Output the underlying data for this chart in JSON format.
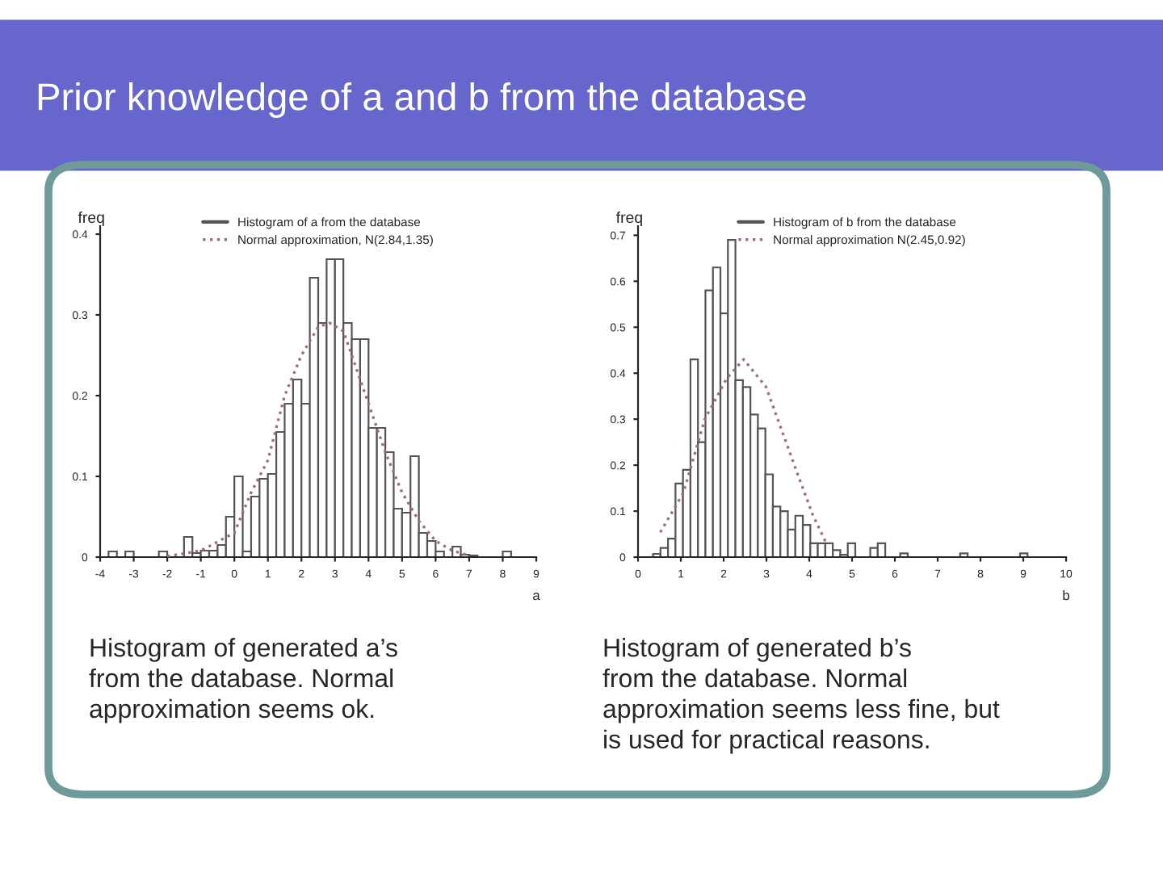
{
  "chart_data": [
    {
      "type": "histogram",
      "title": "Prior knowledge of a and b from the database",
      "ylabel": "freq",
      "xlabel": "a",
      "legend": "top",
      "bins": [
        -4,
        -3.75,
        -3.5,
        -3.25,
        -3,
        -2.75,
        -2.5,
        -2.25,
        -2,
        -1.75,
        -1.5,
        -1.25,
        -1,
        -0.75,
        -0.5,
        -0.25,
        0,
        0.25,
        0.5,
        0.75,
        1,
        1.25,
        1.5,
        1.75,
        2,
        2.25,
        2.5,
        2.75,
        3,
        3.25,
        3.5,
        3.75,
        4,
        4.25,
        4.5,
        4.75,
        5,
        5.25,
        5.5,
        5.75,
        6,
        6.25,
        6.5,
        6.75,
        7,
        7.25,
        7.5,
        7.75,
        8,
        8.25,
        8.5,
        8.75,
        9
      ],
      "series": [
        {
          "name": "Histogram of a from the database",
          "color": "#555555",
          "values": [
            0,
            0.007,
            0,
            0.007,
            0,
            0,
            0,
            0.007,
            null,
            0,
            0.025,
            0.005,
            0.008,
            0.008,
            0.015,
            0.05,
            0.1,
            0.007,
            0.075,
            0.097,
            0.103,
            0.155,
            0.19,
            0.22,
            0.19,
            0.346,
            0.29,
            0.369,
            0.369,
            0.29,
            0.27,
            0.27,
            0.16,
            0.16,
            0.13,
            0.06,
            0.055,
            0.125,
            0.03,
            0.02,
            0.007,
            0,
            0.013,
            0.003,
            0.002,
            0,
            0,
            0,
            0.007,
            0,
            0,
            0
          ]
        },
        {
          "name": "Normal approximation, N(2.84,1.35)",
          "type": "line",
          "color": "#a07070",
          "line_style": "dotted",
          "x": [
            -2,
            -1,
            0,
            0.5,
            1,
            1.5,
            2,
            2.5,
            2.84,
            3.25,
            3.5,
            4,
            4.5,
            5,
            5.5,
            6,
            6.5,
            7
          ],
          "values": [
            0.001,
            0.008,
            0.03,
            0.08,
            0.12,
            0.2,
            0.25,
            0.285,
            0.29,
            0.28,
            0.25,
            0.19,
            0.13,
            0.08,
            0.045,
            0.02,
            0.008,
            0.002
          ]
        }
      ],
      "xlim": [
        -4,
        9
      ],
      "xticks": [
        -4,
        -3,
        -2,
        -1,
        0,
        1,
        2,
        3,
        4,
        5,
        6,
        7,
        8,
        9
      ],
      "ylim": [
        0,
        0.41
      ],
      "yticks": [
        0,
        0.1,
        0.2,
        0.3,
        0.4
      ],
      "annotations": [
        "Histogram of generated a’s\nfrom the database. Normal\napproximation seems ok."
      ]
    },
    {
      "type": "histogram",
      "ylabel": "freq",
      "xlabel": "b",
      "legend": "top",
      "bins": [
        0.35,
        0.525,
        0.7,
        0.875,
        1.05,
        1.225,
        1.4,
        1.575,
        1.75,
        1.925,
        2.1,
        2.275,
        2.45,
        2.625,
        2.8,
        2.975,
        3.15,
        3.325,
        3.5,
        3.675,
        3.85,
        4.025,
        4.2,
        4.375,
        4.55,
        4.725,
        4.9,
        5.075,
        5.25,
        5.425,
        5.6,
        5.775,
        5.95,
        6.125,
        6.3,
        6.475,
        6.65,
        6.825,
        7,
        7.175,
        7.35,
        7.525,
        7.7,
        7.875,
        8.05,
        8.225,
        8.4,
        8.575,
        8.75,
        8.925,
        9.1,
        9.275,
        9.45
      ],
      "series": [
        {
          "name": "Histogram of b from the database",
          "color": "#555555",
          "values": [
            0.007,
            0.02,
            0.04,
            0.16,
            0.19,
            0.43,
            0.25,
            0.58,
            0.63,
            0.53,
            0.69,
            0.385,
            0.37,
            0.31,
            0.28,
            0.18,
            0.11,
            0.1,
            0.06,
            0.09,
            0.07,
            0.03,
            0.03,
            0.03,
            0.015,
            0.005,
            0.03,
            0,
            0,
            0.02,
            0.03,
            0,
            0,
            0.008,
            0,
            0,
            0,
            0,
            0,
            0,
            0,
            0.008,
            0,
            0,
            0,
            0,
            0,
            0,
            0,
            0.008,
            0,
            0
          ]
        },
        {
          "name": "Normal approximation N(2.45,0.92)",
          "type": "line",
          "color": "#a07070",
          "line_style": "dotted",
          "x": [
            0.52,
            1.06,
            1.56,
            2.08,
            2.47,
            2.99,
            3.38,
            3.77,
            4.09,
            4.4
          ],
          "values": [
            0.054,
            0.14,
            0.3,
            0.39,
            0.43,
            0.37,
            0.27,
            0.17,
            0.09,
            0.03
          ]
        }
      ],
      "xlim": [
        0,
        10
      ],
      "xticks": [
        0,
        1,
        2,
        3,
        4,
        5,
        6,
        7,
        8,
        9,
        10
      ],
      "ylim": [
        0,
        0.72
      ],
      "yticks": [
        0,
        0.1,
        0.2,
        0.3,
        0.4,
        0.5,
        0.6,
        0.7
      ],
      "annotations": [
        "Histogram of generated b’s\nfrom the database. Normal\napproximation seems less fine, but\nis used for practical reasons."
      ]
    }
  ]
}
